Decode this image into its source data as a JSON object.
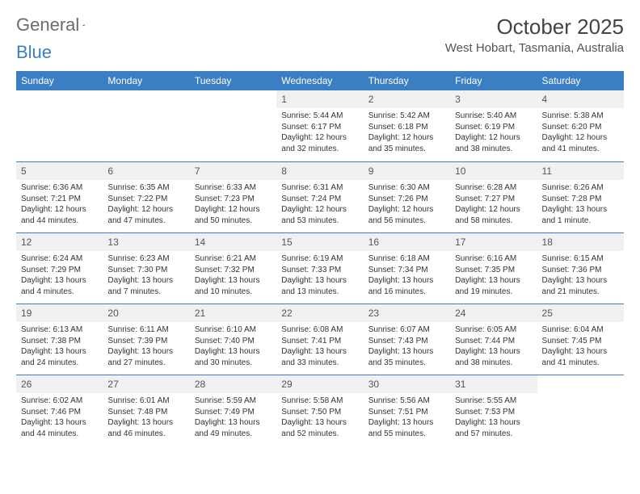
{
  "logo": {
    "general": "General",
    "blue": "Blue"
  },
  "title": "October 2025",
  "location": "West Hobart, Tasmania, Australia",
  "colors": {
    "header_bg": "#3a7fc4",
    "header_text": "#ffffff",
    "daynum_bg": "#eef0f2",
    "border": "#3a7fc4",
    "logo_gray": "#6b6b6b",
    "logo_blue": "#3a7fc4"
  },
  "weekdays": [
    "Sunday",
    "Monday",
    "Tuesday",
    "Wednesday",
    "Thursday",
    "Friday",
    "Saturday"
  ],
  "weeks": [
    [
      null,
      null,
      null,
      {
        "n": "1",
        "sr": "5:44 AM",
        "ss": "6:17 PM",
        "dl": "12 hours and 32 minutes."
      },
      {
        "n": "2",
        "sr": "5:42 AM",
        "ss": "6:18 PM",
        "dl": "12 hours and 35 minutes."
      },
      {
        "n": "3",
        "sr": "5:40 AM",
        "ss": "6:19 PM",
        "dl": "12 hours and 38 minutes."
      },
      {
        "n": "4",
        "sr": "5:38 AM",
        "ss": "6:20 PM",
        "dl": "12 hours and 41 minutes."
      }
    ],
    [
      {
        "n": "5",
        "sr": "6:36 AM",
        "ss": "7:21 PM",
        "dl": "12 hours and 44 minutes."
      },
      {
        "n": "6",
        "sr": "6:35 AM",
        "ss": "7:22 PM",
        "dl": "12 hours and 47 minutes."
      },
      {
        "n": "7",
        "sr": "6:33 AM",
        "ss": "7:23 PM",
        "dl": "12 hours and 50 minutes."
      },
      {
        "n": "8",
        "sr": "6:31 AM",
        "ss": "7:24 PM",
        "dl": "12 hours and 53 minutes."
      },
      {
        "n": "9",
        "sr": "6:30 AM",
        "ss": "7:26 PM",
        "dl": "12 hours and 56 minutes."
      },
      {
        "n": "10",
        "sr": "6:28 AM",
        "ss": "7:27 PM",
        "dl": "12 hours and 58 minutes."
      },
      {
        "n": "11",
        "sr": "6:26 AM",
        "ss": "7:28 PM",
        "dl": "13 hours and 1 minute."
      }
    ],
    [
      {
        "n": "12",
        "sr": "6:24 AM",
        "ss": "7:29 PM",
        "dl": "13 hours and 4 minutes."
      },
      {
        "n": "13",
        "sr": "6:23 AM",
        "ss": "7:30 PM",
        "dl": "13 hours and 7 minutes."
      },
      {
        "n": "14",
        "sr": "6:21 AM",
        "ss": "7:32 PM",
        "dl": "13 hours and 10 minutes."
      },
      {
        "n": "15",
        "sr": "6:19 AM",
        "ss": "7:33 PM",
        "dl": "13 hours and 13 minutes."
      },
      {
        "n": "16",
        "sr": "6:18 AM",
        "ss": "7:34 PM",
        "dl": "13 hours and 16 minutes."
      },
      {
        "n": "17",
        "sr": "6:16 AM",
        "ss": "7:35 PM",
        "dl": "13 hours and 19 minutes."
      },
      {
        "n": "18",
        "sr": "6:15 AM",
        "ss": "7:36 PM",
        "dl": "13 hours and 21 minutes."
      }
    ],
    [
      {
        "n": "19",
        "sr": "6:13 AM",
        "ss": "7:38 PM",
        "dl": "13 hours and 24 minutes."
      },
      {
        "n": "20",
        "sr": "6:11 AM",
        "ss": "7:39 PM",
        "dl": "13 hours and 27 minutes."
      },
      {
        "n": "21",
        "sr": "6:10 AM",
        "ss": "7:40 PM",
        "dl": "13 hours and 30 minutes."
      },
      {
        "n": "22",
        "sr": "6:08 AM",
        "ss": "7:41 PM",
        "dl": "13 hours and 33 minutes."
      },
      {
        "n": "23",
        "sr": "6:07 AM",
        "ss": "7:43 PM",
        "dl": "13 hours and 35 minutes."
      },
      {
        "n": "24",
        "sr": "6:05 AM",
        "ss": "7:44 PM",
        "dl": "13 hours and 38 minutes."
      },
      {
        "n": "25",
        "sr": "6:04 AM",
        "ss": "7:45 PM",
        "dl": "13 hours and 41 minutes."
      }
    ],
    [
      {
        "n": "26",
        "sr": "6:02 AM",
        "ss": "7:46 PM",
        "dl": "13 hours and 44 minutes."
      },
      {
        "n": "27",
        "sr": "6:01 AM",
        "ss": "7:48 PM",
        "dl": "13 hours and 46 minutes."
      },
      {
        "n": "28",
        "sr": "5:59 AM",
        "ss": "7:49 PM",
        "dl": "13 hours and 49 minutes."
      },
      {
        "n": "29",
        "sr": "5:58 AM",
        "ss": "7:50 PM",
        "dl": "13 hours and 52 minutes."
      },
      {
        "n": "30",
        "sr": "5:56 AM",
        "ss": "7:51 PM",
        "dl": "13 hours and 55 minutes."
      },
      {
        "n": "31",
        "sr": "5:55 AM",
        "ss": "7:53 PM",
        "dl": "13 hours and 57 minutes."
      },
      null
    ]
  ],
  "labels": {
    "sunrise": "Sunrise:",
    "sunset": "Sunset:",
    "daylight": "Daylight:"
  }
}
